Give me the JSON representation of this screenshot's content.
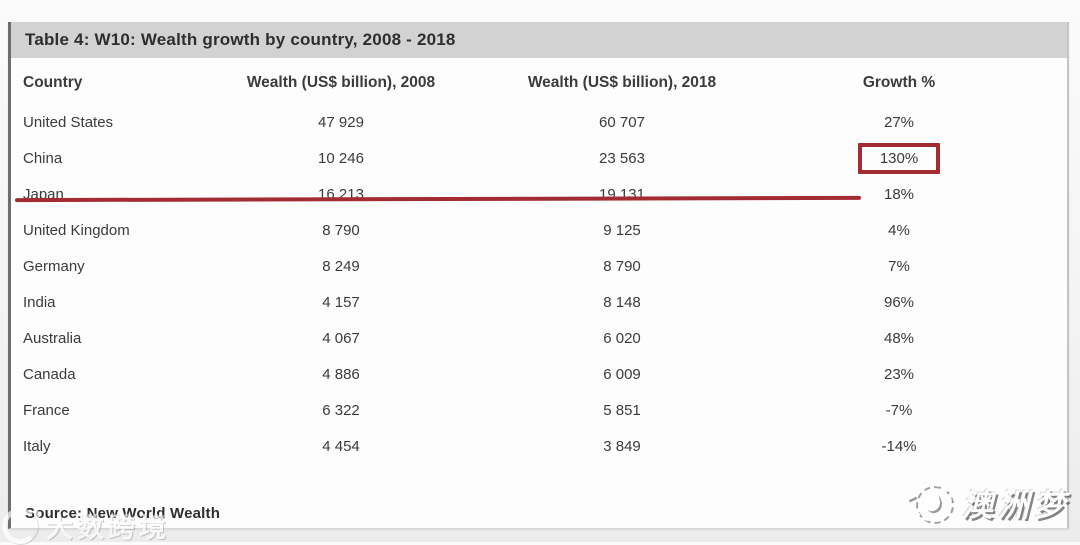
{
  "title_bar": {
    "title": "Table 4: W10: Wealth growth by country, 2008 - 2018"
  },
  "chart_data": {
    "type": "table",
    "title": "Table 4: W10: Wealth growth by country, 2008 - 2018",
    "columns": [
      "Country",
      "Wealth (US$ billion), 2008",
      "Wealth (US$ billion), 2018",
      "Growth %"
    ],
    "rows": [
      [
        "United States",
        "47 929",
        "60 707",
        "27%"
      ],
      [
        "China",
        "10 246",
        "23 563",
        "130%"
      ],
      [
        "Japan",
        "16 213",
        "19 131",
        "18%"
      ],
      [
        "United Kingdom",
        "8 790",
        "9 125",
        "4%"
      ],
      [
        "Germany",
        "8 249",
        "8 790",
        "7%"
      ],
      [
        "India",
        "4 157",
        "8 148",
        "96%"
      ],
      [
        "Australia",
        "4 067",
        "6 020",
        "48%"
      ],
      [
        "Canada",
        "4 886",
        "6 009",
        "23%"
      ],
      [
        "France",
        "6 322",
        "5 851",
        "-7%"
      ],
      [
        "Italy",
        "4 454",
        "3 849",
        "-14%"
      ]
    ],
    "source": "Source: New World Wealth",
    "annotation": {
      "highlighted_country": "China",
      "boxed_value": "130%",
      "style": "red underline across China row and red box around growth value",
      "color": "#a32c33"
    }
  },
  "watermarks": {
    "bottom_left_text": "大数跨境",
    "bottom_right_text": "澳洲梦"
  },
  "colors": {
    "title_bar_bg": "#d2d2d2",
    "annotation_red": "#a32c33",
    "text": "#3b3b3b",
    "panel_bg": "#fdfdfd"
  }
}
